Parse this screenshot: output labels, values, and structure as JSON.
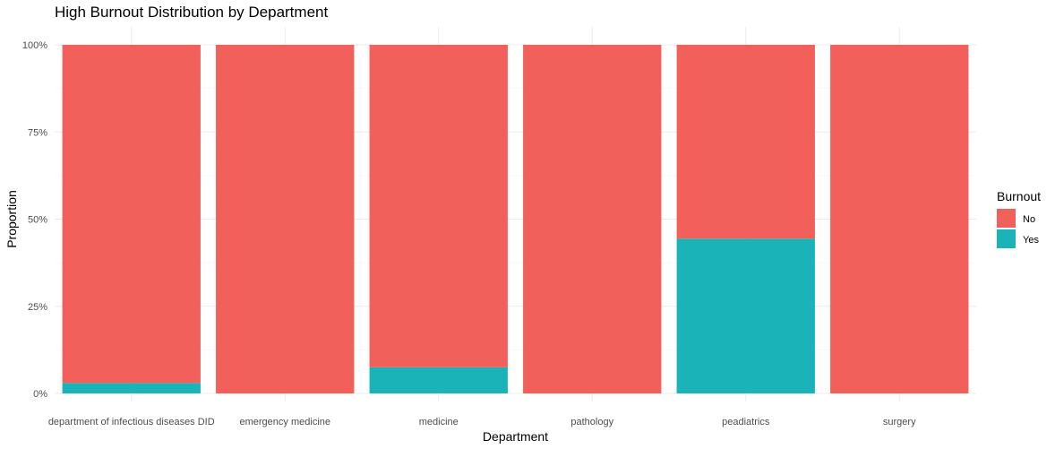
{
  "chart_data": {
    "type": "bar",
    "stacked": true,
    "title": "High Burnout Distribution by Department",
    "xlabel": "Department",
    "ylabel": "Proportion",
    "ylim": [
      0,
      1
    ],
    "yticks": [
      0,
      0.25,
      0.5,
      0.75,
      1.0
    ],
    "ytick_labels": [
      "0%",
      "25%",
      "50%",
      "75%",
      "100%"
    ],
    "grid": true,
    "categories": [
      "department of infectious diseases DID",
      "emergency medicine",
      "medicine",
      "pathology",
      "peadiatrics",
      "surgery"
    ],
    "series": [
      {
        "name": "No",
        "color": "#F2605C",
        "values": [
          0.97,
          1.0,
          0.925,
          1.0,
          0.556,
          1.0
        ]
      },
      {
        "name": "Yes",
        "color": "#1AB4B8",
        "values": [
          0.03,
          0.0,
          0.075,
          0.0,
          0.444,
          0.0
        ]
      }
    ],
    "legend": {
      "title": "Burnout",
      "position": "right",
      "entries": [
        "No",
        "Yes"
      ]
    }
  }
}
